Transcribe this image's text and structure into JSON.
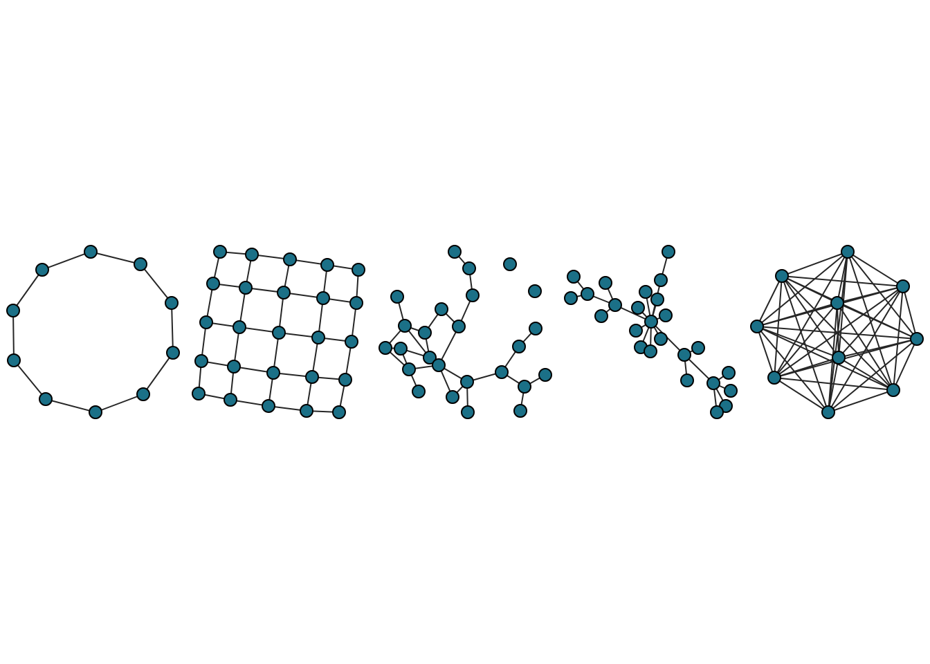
{
  "colors": {
    "node_fill": "#1b7087",
    "node_stroke": "#000000",
    "edge": "#262626",
    "background": "#ffffff"
  },
  "graphs": [
    {
      "id": "ring",
      "kind": "cycle",
      "node_count": 10
    },
    {
      "id": "grid",
      "kind": "lattice",
      "rows": 5,
      "cols": 5
    },
    {
      "id": "sparse-random",
      "kind": "random",
      "node_count": 24,
      "edges": [
        [
          8,
          15
        ],
        [
          15,
          9
        ],
        [
          8,
          10
        ],
        [
          10,
          12
        ],
        [
          9,
          10
        ],
        [
          9,
          11
        ],
        [
          12,
          11
        ],
        [
          12,
          13
        ],
        [
          13,
          3
        ],
        [
          13,
          0
        ],
        [
          13,
          1
        ],
        [
          13,
          2
        ],
        [
          2,
          4
        ],
        [
          2,
          7
        ],
        [
          6,
          5
        ],
        [
          5,
          7
        ],
        [
          3,
          14
        ],
        [
          14,
          16
        ],
        [
          16,
          18
        ],
        [
          16,
          17
        ],
        [
          0,
          17
        ],
        [
          19,
          20
        ],
        [
          19,
          21
        ],
        [
          20,
          22
        ],
        [
          1,
          23
        ]
      ]
    },
    {
      "id": "star-tree",
      "kind": "tree",
      "node_count": 24,
      "edges": [
        [
          0,
          1
        ],
        [
          2,
          1
        ],
        [
          1,
          3
        ],
        [
          3,
          4
        ],
        [
          3,
          5
        ],
        [
          3,
          6
        ],
        [
          6,
          7
        ],
        [
          7,
          8
        ],
        [
          6,
          9
        ],
        [
          6,
          10
        ],
        [
          6,
          11
        ],
        [
          6,
          12
        ],
        [
          6,
          13
        ],
        [
          6,
          14
        ],
        [
          6,
          15
        ],
        [
          6,
          16
        ],
        [
          6,
          17
        ],
        [
          17,
          18
        ],
        [
          17,
          19
        ],
        [
          17,
          20
        ],
        [
          20,
          21
        ],
        [
          20,
          22
        ],
        [
          20,
          23
        ]
      ]
    },
    {
      "id": "complete",
      "kind": "complete",
      "node_count": 9
    }
  ]
}
